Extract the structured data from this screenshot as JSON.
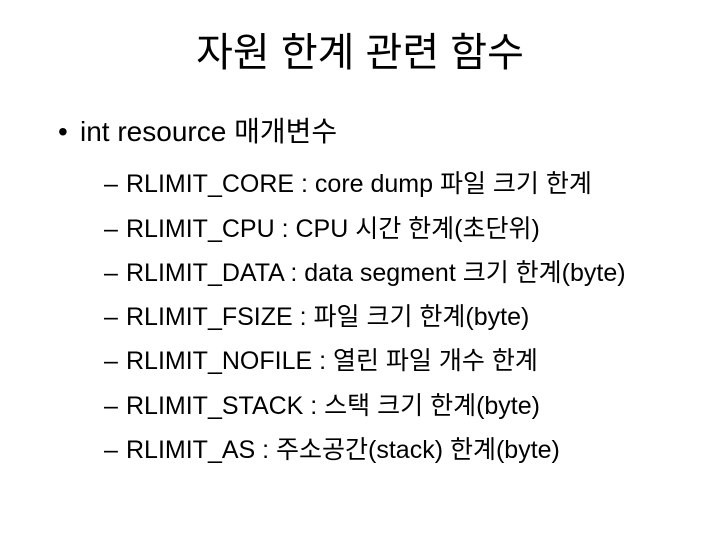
{
  "title": "자원 한계 관련 함수",
  "bullet_l1": "•",
  "bullet_l2": "–",
  "level1_text": "int resource 매개변수",
  "items": [
    "RLIMIT_CORE : core dump 파일 크기 한계",
    "RLIMIT_CPU : CPU 시간 한계(초단위)",
    "RLIMIT_DATA : data segment 크기 한계(byte)",
    "RLIMIT_FSIZE : 파일 크기 한계(byte)",
    "RLIMIT_NOFILE : 열린 파일 개수 한계",
    "RLIMIT_STACK : 스택 크기 한계(byte)",
    "RLIMIT_AS : 주소공간(stack) 한계(byte)"
  ],
  "colors": {
    "background": "#ffffff",
    "text": "#000000"
  },
  "fontsizes": {
    "title": 40,
    "level1": 28,
    "level2": 25
  }
}
